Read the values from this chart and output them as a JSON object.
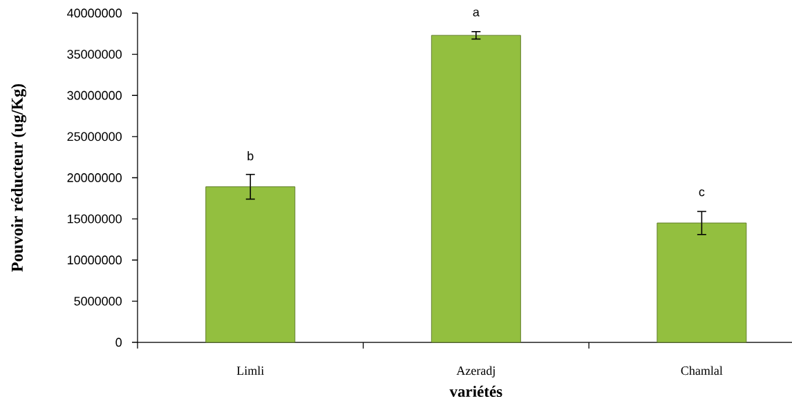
{
  "chart_data": {
    "type": "bar",
    "xlabel": "variétés",
    "ylabel": "Pouvoir réducteur (ug/Kg)",
    "categories": [
      "Limli",
      "Azeradj",
      "Chamlal"
    ],
    "values": [
      18900000,
      37300000,
      14500000
    ],
    "errors": [
      1500000,
      450000,
      1400000
    ],
    "color": "#93bf3f",
    "ylim": [
      0,
      40000000
    ],
    "yticks": [
      0,
      5000000,
      10000000,
      15000000,
      20000000,
      25000000,
      30000000,
      35000000,
      40000000
    ],
    "annotations": [
      "b",
      "a",
      "c"
    ]
  }
}
